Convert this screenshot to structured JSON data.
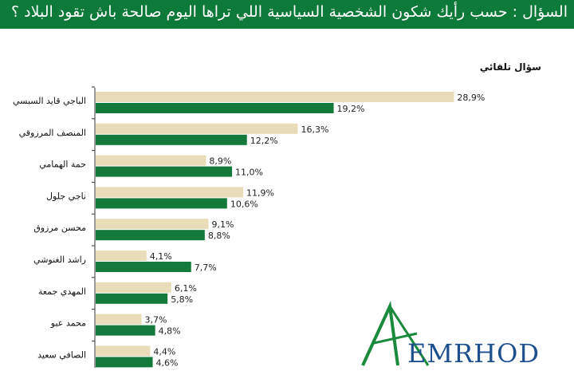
{
  "header": {
    "question": "السؤال :  حسب رأيك شكون الشخصية  السياسية اللي تراها اليوم صالحة باش تقود البلاد ؟"
  },
  "subtitle": "سؤال تلقائي",
  "logo": {
    "text": "EMRHOD"
  },
  "colors": {
    "header_bg": "#0e7a3a",
    "series_a": "#e8ddb8",
    "series_b": "#147a3c",
    "axis": "#333333"
  },
  "chart_data": {
    "type": "bar",
    "orientation": "horizontal",
    "categories": [
      "الباجي قايد السبسي",
      "المنصف المرزوقي",
      "حمة الهمامي",
      "ناجي جلول",
      "محسن مرزوق",
      "راشد الغنوشي",
      "المهدي جمعة",
      "محمد عبو",
      "الصافي سعيد"
    ],
    "series": [
      {
        "values": [
          28.9,
          16.3,
          8.9,
          11.9,
          9.1,
          4.1,
          6.1,
          3.7,
          4.4
        ],
        "labels": [
          "28,9%",
          "16,3%",
          "8,9%",
          "11,9%",
          "9,1%",
          "4,1%",
          "6,1%",
          "3,7%",
          "4,4%"
        ]
      },
      {
        "values": [
          19.2,
          12.2,
          11.0,
          10.6,
          8.8,
          7.7,
          5.8,
          4.8,
          4.6
        ],
        "labels": [
          "19,2%",
          "12,2%",
          "11,0%",
          "10,6%",
          "8,8%",
          "7,7%",
          "5,8%",
          "4,8%",
          "4,6%"
        ]
      }
    ],
    "xlim": [
      0,
      30
    ],
    "grid": false,
    "legend": "none"
  }
}
